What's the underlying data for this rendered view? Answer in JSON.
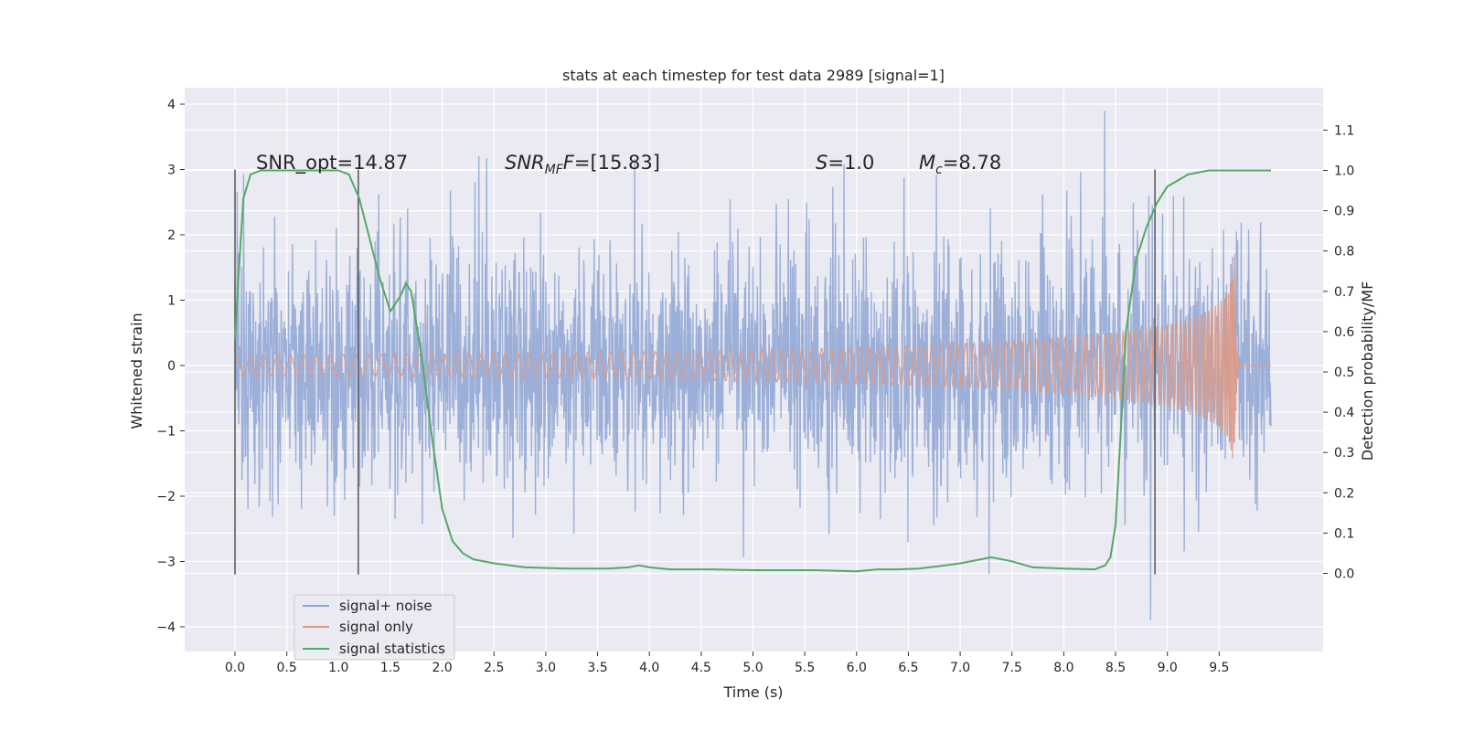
{
  "chart_data": {
    "type": "line",
    "title": "stats at each timestep for test data 2989 [signal=1]",
    "xlabel": "Time (s)",
    "ylabel_left": "Whitened strain",
    "ylabel_right": "Detection probability/MF",
    "xlim": [
      -0.5,
      10.5
    ],
    "ylim_left": [
      -4.45,
      4.2
    ],
    "ylim_right": [
      -0.2,
      1.2
    ],
    "xticks": [
      "0.0",
      "0.5",
      "1.0",
      "1.5",
      "2.0",
      "2.5",
      "3.0",
      "3.5",
      "4.0",
      "4.5",
      "5.0",
      "5.5",
      "6.0",
      "6.5",
      "7.0",
      "7.5",
      "8.0",
      "8.5",
      "9.0",
      "9.5"
    ],
    "yticks_left": [
      "−4",
      "−3",
      "−2",
      "−1",
      "0",
      "1",
      "2",
      "3",
      "4"
    ],
    "yticks_right": [
      "0.0",
      "0.1",
      "0.2",
      "0.3",
      "0.4",
      "0.5",
      "0.6",
      "0.7",
      "0.8",
      "0.9",
      "1.0",
      "1.1"
    ],
    "grid": true,
    "legend_position": "lower-left",
    "legend": [
      "signal+ noise",
      "signal only",
      "signal statistics"
    ],
    "annotations": {
      "snr_opt": "SNR_opt=14.87",
      "snr_mf_main": "SNR",
      "snr_mf_sub": "MF",
      "snr_mf_value": "=[15.83]",
      "s_main": "S",
      "s_value": "=1.0",
      "mc_main": "M",
      "mc_sub": "c",
      "mc_value": "=8.78"
    },
    "vertical_lines": {
      "x": [
        0.0,
        1.19,
        8.88
      ],
      "y_range": [
        -3.2,
        3.0
      ]
    },
    "series": [
      {
        "name": "signal+ noise",
        "color": "#8ea5d4",
        "x_range": [
          0.0,
          10.0
        ],
        "envelope": "random noise approx ±1.8 with spikes to ±3.9"
      },
      {
        "name": "signal only",
        "color": "#dd9a85",
        "x_range": [
          0.0,
          10.0
        ],
        "chirp_peak_time": 9.65,
        "peak_amplitude": 1.7
      },
      {
        "name": "signal statistics",
        "color": "#55a868",
        "x": [
          0.0,
          0.03,
          0.08,
          0.15,
          0.25,
          0.5,
          0.8,
          1.0,
          1.1,
          1.2,
          1.3,
          1.4,
          1.5,
          1.6,
          1.65,
          1.7,
          1.8,
          1.9,
          2.0,
          2.1,
          2.2,
          2.3,
          2.5,
          2.8,
          3.2,
          3.6,
          3.8,
          3.9,
          4.0,
          4.2,
          4.6,
          5.0,
          5.6,
          6.0,
          6.2,
          6.4,
          6.6,
          6.8,
          7.0,
          7.2,
          7.3,
          7.5,
          7.7,
          8.0,
          8.3,
          8.4,
          8.45,
          8.5,
          8.55,
          8.6,
          8.7,
          8.8,
          8.9,
          9.0,
          9.2,
          9.4,
          9.5,
          9.7,
          10.0
        ],
        "y": [
          0.58,
          0.72,
          0.93,
          0.99,
          1.0,
          1.0,
          1.0,
          1.0,
          0.99,
          0.93,
          0.83,
          0.73,
          0.65,
          0.69,
          0.72,
          0.7,
          0.54,
          0.34,
          0.16,
          0.08,
          0.05,
          0.035,
          0.025,
          0.015,
          0.012,
          0.012,
          0.015,
          0.02,
          0.015,
          0.01,
          0.01,
          0.008,
          0.008,
          0.005,
          0.01,
          0.01,
          0.012,
          0.018,
          0.025,
          0.035,
          0.04,
          0.03,
          0.015,
          0.012,
          0.01,
          0.02,
          0.04,
          0.12,
          0.35,
          0.6,
          0.78,
          0.86,
          0.92,
          0.96,
          0.99,
          1.0,
          1.0,
          1.0,
          1.0
        ]
      }
    ]
  }
}
